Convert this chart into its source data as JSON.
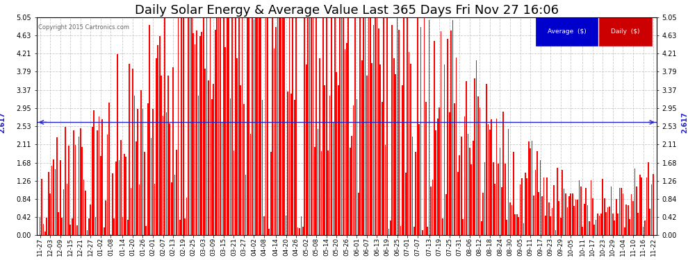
{
  "title": "Daily Solar Energy & Average Value Last 365 Days Fri Nov 27 16:06",
  "copyright": "Copyright 2015 Cartronics.com",
  "average_value": 2.617,
  "ylim": [
    0.0,
    5.05
  ],
  "yticks": [
    0.0,
    0.42,
    0.84,
    1.26,
    1.68,
    2.11,
    2.53,
    2.95,
    3.37,
    3.79,
    4.21,
    4.63,
    5.05
  ],
  "bar_color": "#ff0000",
  "avg_line_color": "#2222cc",
  "background_color": "#ffffff",
  "grid_color": "#bbbbbb",
  "title_fontsize": 13,
  "tick_fontsize": 7,
  "x_labels": [
    "11-27",
    "12-03",
    "12-09",
    "12-15",
    "12-21",
    "12-27",
    "01-02",
    "01-08",
    "01-14",
    "01-20",
    "01-26",
    "02-01",
    "02-07",
    "02-13",
    "02-19",
    "02-25",
    "03-03",
    "03-09",
    "03-15",
    "03-21",
    "03-27",
    "04-02",
    "04-08",
    "04-14",
    "04-20",
    "04-26",
    "05-02",
    "05-08",
    "05-14",
    "05-20",
    "05-26",
    "06-01",
    "06-07",
    "06-13",
    "06-19",
    "06-25",
    "07-01",
    "07-07",
    "07-13",
    "07-19",
    "07-25",
    "07-31",
    "08-06",
    "08-12",
    "08-18",
    "08-24",
    "08-30",
    "09-05",
    "09-11",
    "09-17",
    "09-23",
    "09-29",
    "10-05",
    "10-11",
    "10-17",
    "10-23",
    "10-29",
    "11-04",
    "11-10",
    "11-16",
    "11-22"
  ],
  "num_bars": 365,
  "figwidth": 9.9,
  "figheight": 3.75,
  "dpi": 100
}
